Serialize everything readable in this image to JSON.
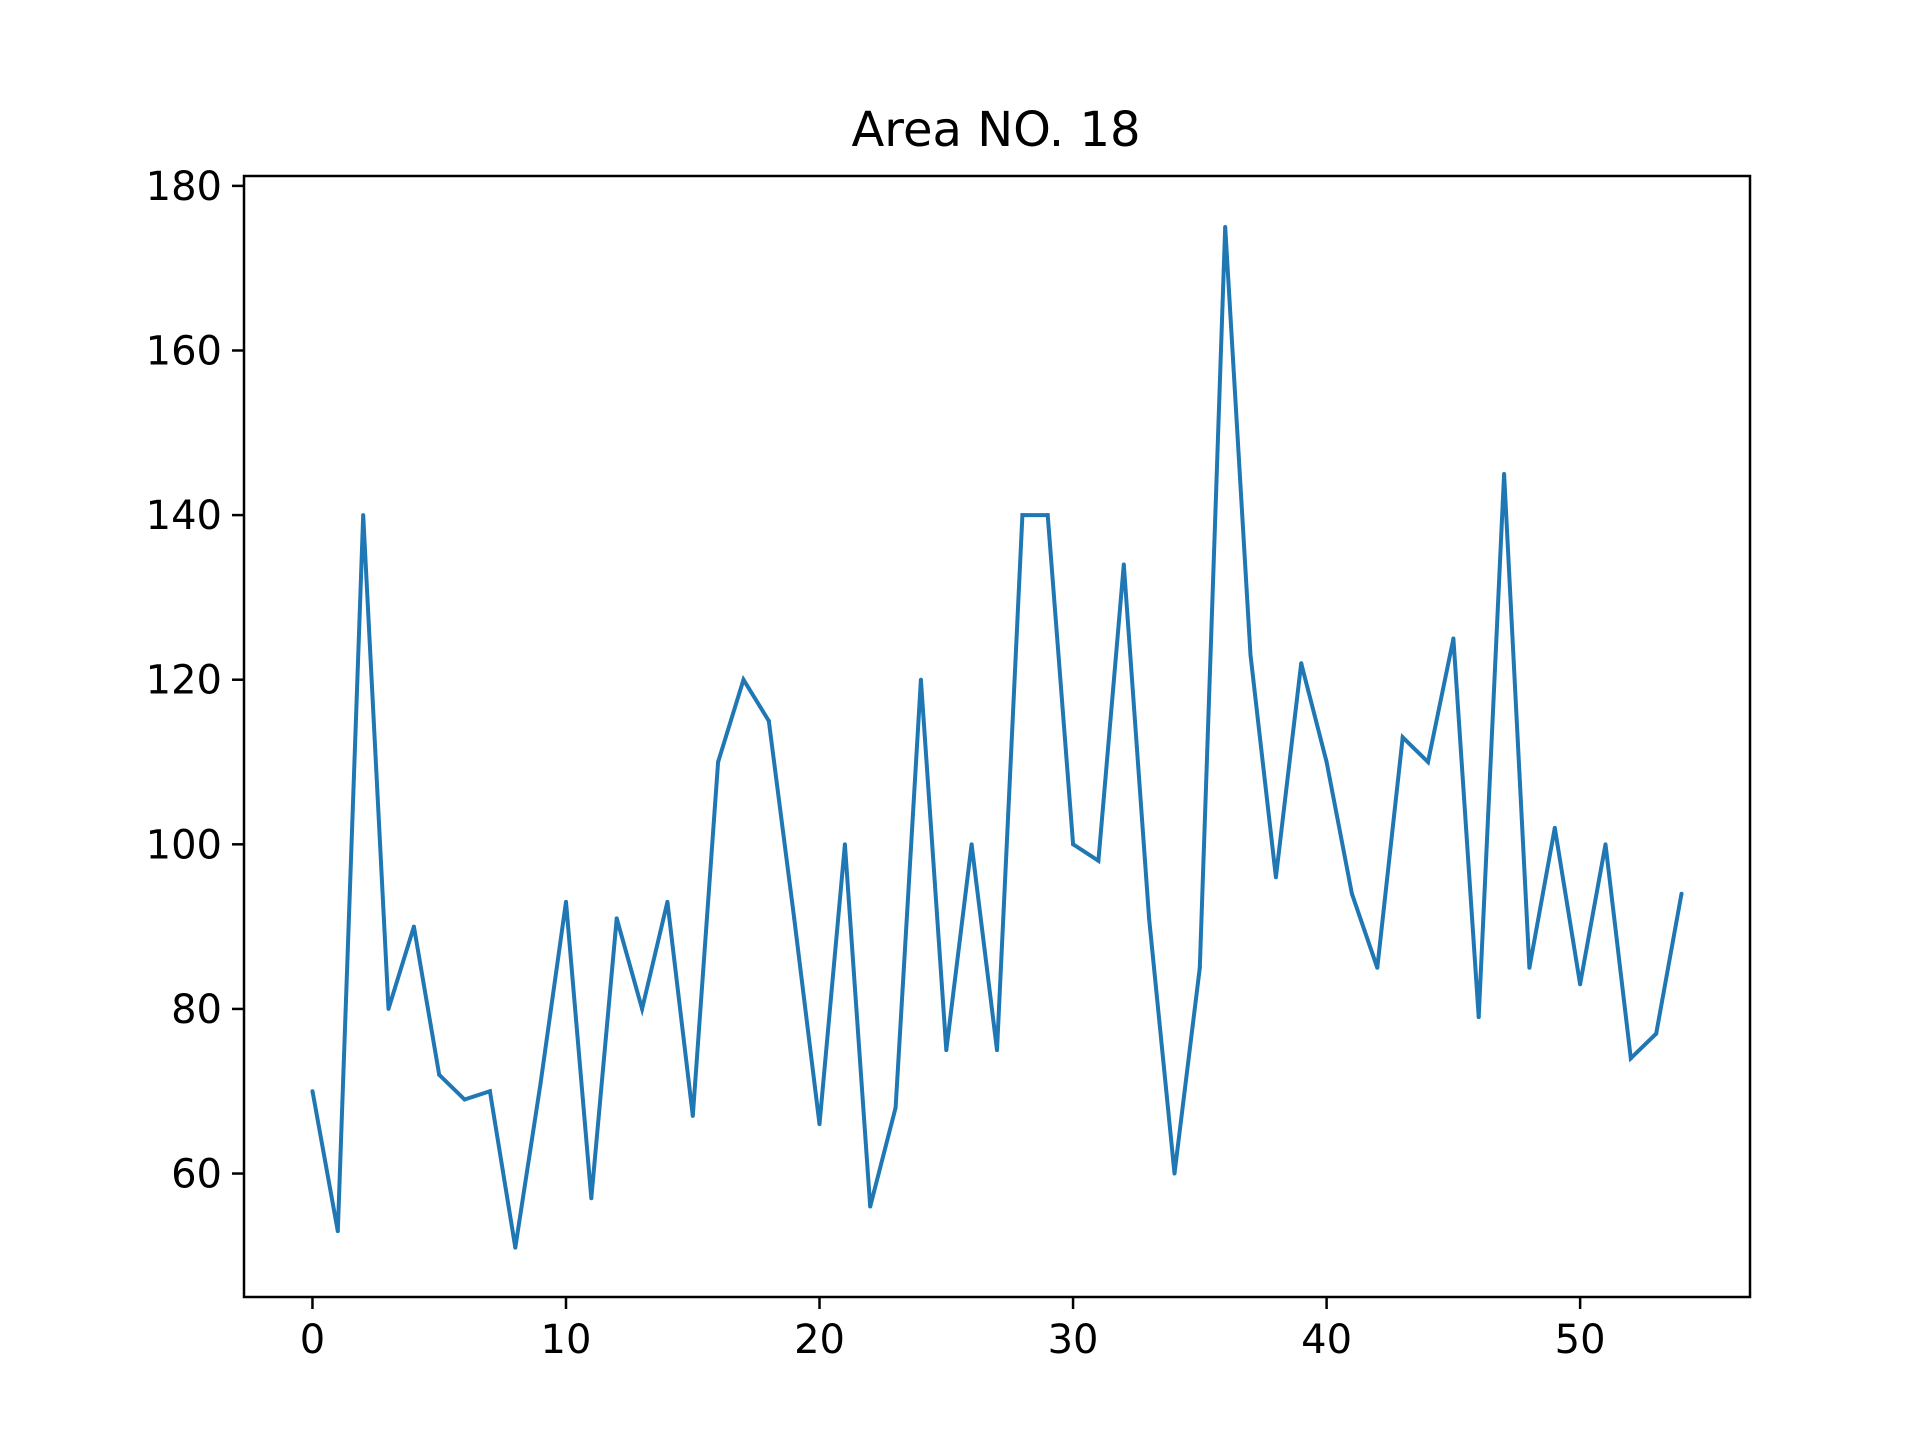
{
  "chart_data": {
    "type": "line",
    "title": "Area NO. 18",
    "xlabel": "",
    "ylabel": "",
    "xlim": [
      -2.7,
      56.7
    ],
    "ylim": [
      45,
      181.2
    ],
    "xticks": [
      0,
      10,
      20,
      30,
      40,
      50
    ],
    "yticks": [
      60,
      80,
      100,
      120,
      140,
      160,
      180
    ],
    "grid": false,
    "legend": "none",
    "colors": {
      "line": "#1f77b4",
      "axes": "#000000",
      "background": "#ffffff"
    },
    "series": [
      {
        "x": [
          0,
          1,
          2,
          3,
          4,
          5,
          6,
          7,
          8,
          9,
          10,
          11,
          12,
          13,
          14,
          15,
          16,
          17,
          18,
          19,
          20,
          21,
          22,
          23,
          24,
          25,
          26,
          27,
          28,
          29,
          30,
          31,
          32,
          33,
          34,
          35,
          36,
          37,
          38,
          39,
          40,
          41,
          42,
          43,
          44,
          45,
          46,
          47,
          48,
          49,
          50,
          51,
          52,
          53,
          54
        ],
        "values": [
          70,
          53,
          140,
          80,
          90,
          72,
          69,
          70,
          51,
          71,
          93,
          57,
          91,
          80,
          93,
          67,
          110,
          120,
          115,
          91,
          66,
          100,
          56,
          68,
          120,
          75,
          100,
          75,
          140,
          140,
          100,
          98,
          134,
          91,
          60,
          85,
          175,
          123,
          96,
          122,
          110,
          94,
          85,
          113,
          110,
          125,
          79,
          145,
          85,
          102,
          83,
          100,
          74,
          77,
          94
        ]
      }
    ]
  }
}
